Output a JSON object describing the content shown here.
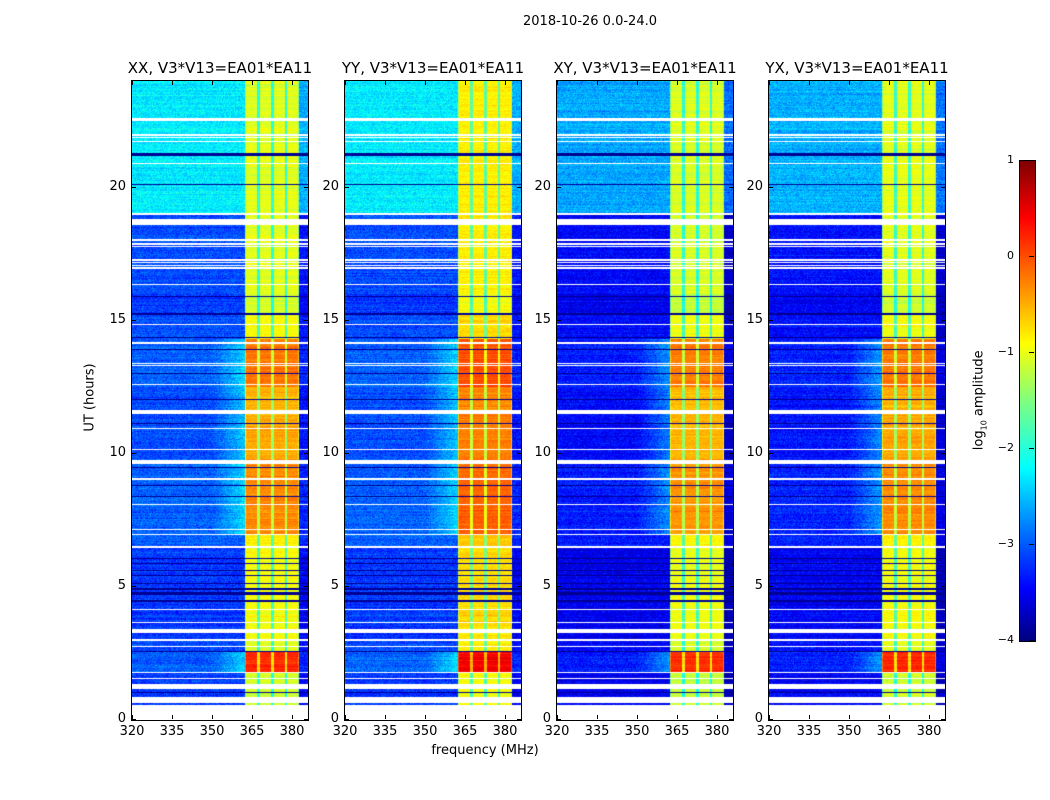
{
  "chart_data": {
    "type": "heatmap",
    "title": "2018-10-26 0.0-24.0",
    "xlabel": "frequency (MHz)",
    "ylabel": "UT (hours)",
    "xlim": [
      320,
      386
    ],
    "ylim": [
      0,
      24
    ],
    "xticks": [
      320,
      335,
      350,
      365,
      380
    ],
    "yticks": [
      0,
      5,
      10,
      15,
      20
    ],
    "colorbar": {
      "label_prefix": "log",
      "label_sub": "10",
      "label_suffix": " amplitude",
      "range": [
        -4,
        1
      ],
      "ticks": [
        1,
        0,
        -1,
        -2,
        -3,
        -4
      ],
      "tick_labels": [
        "1",
        "0",
        "−1",
        "−2",
        "−3",
        "−4"
      ],
      "colormap": "jet"
    },
    "panels": [
      {
        "title": "XX, V3*V13=EA01*EA11",
        "bg_offset": 0.0,
        "band_offset": 0.0
      },
      {
        "title": "YY, V3*V13=EA01*EA11",
        "bg_offset": 0.0,
        "band_offset": 0.2
      },
      {
        "title": "XY, V3*V13=EA01*EA11",
        "bg_offset": -0.35,
        "band_offset": -0.05
      },
      {
        "title": "YX, V3*V13=EA01*EA11",
        "bg_offset": -0.3,
        "band_offset": 0.0
      }
    ],
    "rfi_band_mhz": [
      362.3,
      382.6
    ],
    "band_dividers_mhz": [
      367.5,
      372.8,
      377.7
    ],
    "leak_region_mhz": [
      350,
      362.3
    ],
    "segments_hours": [
      {
        "t": [
          19.0,
          24.0
        ],
        "bg": -2.2,
        "band": -1.0
      },
      {
        "t": [
          16.0,
          19.0
        ],
        "bg": -3.0,
        "band": -1.0
      },
      {
        "t": [
          15.3,
          16.0
        ],
        "bg": -3.1,
        "band": -1.1
      },
      {
        "t": [
          14.3,
          15.3
        ],
        "bg": -3.0,
        "band": -0.9
      },
      {
        "t": [
          12.5,
          14.3
        ],
        "bg": -2.9,
        "band": -0.2
      },
      {
        "t": [
          11.6,
          12.5
        ],
        "bg": -3.0,
        "band": -0.5
      },
      {
        "t": [
          9.8,
          11.6
        ],
        "bg": -3.0,
        "band": -0.45
      },
      {
        "t": [
          7.0,
          9.8
        ],
        "bg": -2.9,
        "band": -0.3
      },
      {
        "t": [
          6.5,
          7.0
        ],
        "bg": -2.9,
        "band": -0.8
      },
      {
        "t": [
          3.0,
          6.5
        ],
        "bg": -3.1,
        "band": -0.9
      },
      {
        "t": [
          2.6,
          3.0
        ],
        "bg": -3.0,
        "band": -1.0
      },
      {
        "t": [
          1.8,
          2.6
        ],
        "bg": -2.9,
        "band": 0.2
      },
      {
        "t": [
          0.0,
          1.8
        ],
        "bg": -3.1,
        "band": -1.1
      }
    ],
    "flagged_hours": [
      [
        22.5,
        22.6
      ],
      [
        21.7,
        21.75
      ],
      [
        21.85,
        21.9
      ],
      [
        21.95,
        22.0
      ],
      [
        20.88,
        20.93
      ],
      [
        18.98,
        19.03
      ],
      [
        18.6,
        18.8
      ],
      [
        17.75,
        17.8
      ],
      [
        17.85,
        17.9
      ],
      [
        18.0,
        18.05
      ],
      [
        16.95,
        17.0
      ],
      [
        17.05,
        17.1
      ],
      [
        17.15,
        17.2
      ],
      [
        17.25,
        17.3
      ],
      [
        16.33,
        16.38
      ],
      [
        14.83,
        14.88
      ],
      [
        14.13,
        14.18
      ],
      [
        13.28,
        13.33
      ],
      [
        13.36,
        13.4
      ],
      [
        12.58,
        12.63
      ],
      [
        11.5,
        11.65
      ],
      [
        10.93,
        10.98
      ],
      [
        10.13,
        10.18
      ],
      [
        9.6,
        9.75
      ],
      [
        9.03,
        9.08
      ],
      [
        8.08,
        8.13
      ],
      [
        7.13,
        7.18
      ],
      [
        6.93,
        6.98
      ],
      [
        6.45,
        6.55
      ],
      [
        4.13,
        4.18
      ],
      [
        3.63,
        3.68
      ],
      [
        3.25,
        3.4
      ],
      [
        2.98,
        3.03
      ],
      [
        2.73,
        2.78
      ],
      [
        1.76,
        1.81
      ],
      [
        1.53,
        1.58
      ],
      [
        1.15,
        1.35
      ],
      [
        0.65,
        0.85
      ],
      [
        0.0,
        0.58
      ]
    ],
    "dead_hours": [
      [
        21.2,
        21.3
      ],
      [
        20.08,
        20.12
      ],
      [
        15.88,
        15.92
      ],
      [
        15.23,
        15.27
      ],
      [
        14.33,
        14.37
      ],
      [
        13.88,
        13.92
      ],
      [
        12.98,
        13.02
      ],
      [
        12.03,
        12.07
      ],
      [
        11.13,
        11.17
      ],
      [
        9.48,
        9.52
      ],
      [
        8.78,
        8.82
      ],
      [
        8.38,
        8.42
      ],
      [
        6.05,
        6.1
      ],
      [
        5.85,
        5.88
      ],
      [
        5.6,
        5.63
      ],
      [
        5.4,
        5.43
      ],
      [
        5.1,
        5.15
      ],
      [
        4.9,
        4.95
      ],
      [
        4.7,
        4.8
      ],
      [
        4.45,
        4.5
      ],
      [
        2.55,
        2.6
      ],
      [
        1.0,
        1.05
      ]
    ]
  }
}
